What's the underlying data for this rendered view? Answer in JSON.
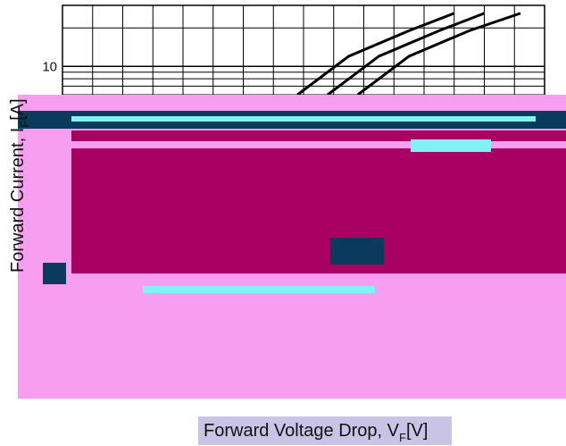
{
  "chart_data": {
    "type": "line",
    "title": "",
    "xlabel": "Forward Voltage Drop, V",
    "xlabel_sub": "F",
    "xlabel_unit": "[V]",
    "ylabel": "Forward Current, I",
    "ylabel_sub": "F",
    "ylabel_unit": "[A]",
    "y_scale": "log",
    "y_ticks": [
      "10"
    ],
    "grid": true,
    "series": [
      {
        "values_xy": [
          [
            0.78,
            6.0
          ],
          [
            0.95,
            12.0
          ],
          [
            1.15,
            19.0
          ],
          [
            1.3,
            26.0
          ]
        ]
      },
      {
        "values_xy": [
          [
            0.88,
            6.0
          ],
          [
            1.05,
            12.0
          ],
          [
            1.25,
            19.0
          ],
          [
            1.4,
            26.0
          ]
        ]
      },
      {
        "values_xy": [
          [
            0.98,
            6.0
          ],
          [
            1.15,
            12.0
          ],
          [
            1.35,
            19.0
          ],
          [
            1.52,
            26.0
          ]
        ]
      }
    ],
    "xlim": [
      0.0,
      1.6
    ],
    "ylim_visible": [
      6.0,
      30.0
    ]
  },
  "colors": {
    "grid": "#000000",
    "curve": "#000000",
    "overlay_pink": "#f79ef1",
    "overlay_magenta": "#a80063",
    "overlay_navy": "#0a3b5c",
    "overlay_cyan": "#7ff3f3"
  }
}
